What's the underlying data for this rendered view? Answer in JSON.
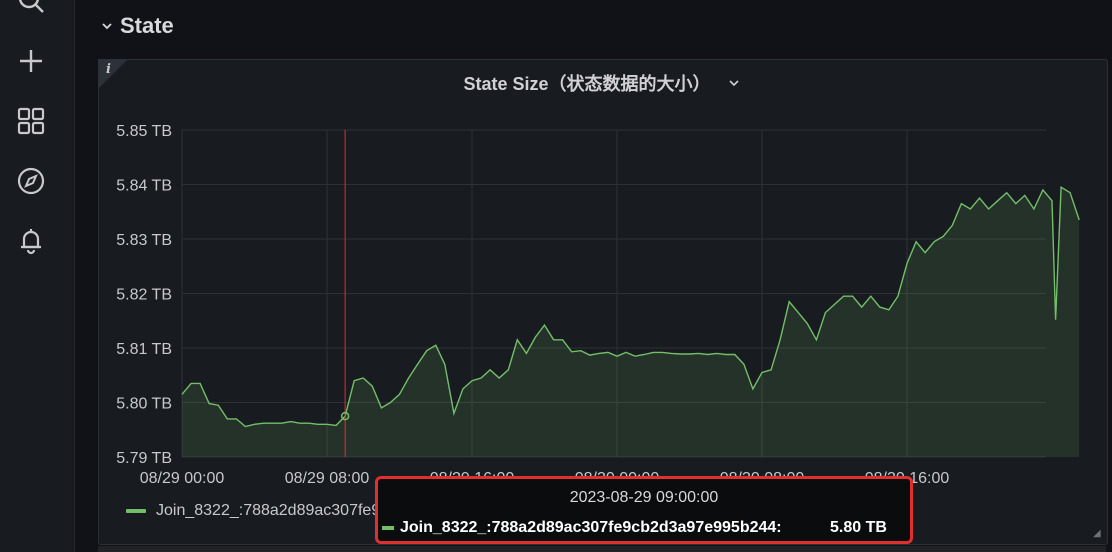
{
  "sidebar": {
    "items": [
      {
        "icon": "search-icon"
      },
      {
        "icon": "plus-icon"
      },
      {
        "icon": "dashboards-icon"
      },
      {
        "icon": "explore-compass-icon"
      },
      {
        "icon": "alerting-bell-icon"
      }
    ]
  },
  "row": {
    "title": "State"
  },
  "panel": {
    "title": "State Size（状态数据的大小）",
    "info": "i"
  },
  "colors": {
    "series": "#73bf69",
    "cursor": "#e02f2f",
    "grid": "#2e3136",
    "background": "#181b1f"
  },
  "chart_data": {
    "type": "area",
    "title": "State Size（状态数据的大小）",
    "y_unit": "TB",
    "ylim": [
      5.79,
      5.85
    ],
    "yticks": [
      "5.79 TB",
      "5.80 TB",
      "5.81 TB",
      "5.82 TB",
      "5.83 TB",
      "5.84 TB",
      "5.85 TB"
    ],
    "xticks": [
      "08/29 00:00",
      "08/29 08:00",
      "08/29 16:00",
      "08/30 00:00",
      "08/30 08:00",
      "08/30 16:00"
    ],
    "grid": true,
    "legend_placement": "bottom-left",
    "cursor_time": "2023-08-29 09:00:00",
    "series": [
      {
        "name": "Join_8322_:788a2d89ac307fe9cb2d3a97e995b244",
        "x": [
          0,
          0.5,
          1,
          1.5,
          2,
          2.5,
          3,
          3.5,
          4,
          4.5,
          5,
          5.5,
          6,
          6.5,
          7,
          7.5,
          8,
          8.5,
          9,
          9.5,
          10,
          10.5,
          11,
          11.5,
          12,
          12.5,
          13,
          13.5,
          14,
          14.5,
          15,
          15.5,
          16,
          16.5,
          17,
          17.5,
          18,
          18.5,
          19,
          19.5,
          20,
          20.5,
          21,
          21.5,
          22,
          22.5,
          23,
          23.5,
          24,
          24.5,
          25,
          25.5,
          26,
          26.5,
          27,
          27.5,
          28,
          28.5,
          29,
          29.5,
          30,
          30.5,
          31,
          31.5,
          32,
          32.5,
          33,
          33.5,
          34,
          34.5,
          35,
          35.5,
          36,
          36.5,
          37,
          37.5,
          38,
          38.5,
          39,
          39.5,
          40,
          40.5,
          41,
          41.5,
          42,
          42.5,
          43,
          43.5,
          44,
          44.5,
          45,
          45.5,
          46,
          46.5,
          47,
          47.5,
          48,
          48.2,
          48.5,
          49,
          49.5
        ],
        "values": [
          5.8015,
          5.8035,
          5.8035,
          5.7998,
          5.7995,
          5.797,
          5.797,
          5.7956,
          5.796,
          5.7962,
          5.7962,
          5.7962,
          5.7965,
          5.7962,
          5.7962,
          5.796,
          5.796,
          5.7958,
          5.7975,
          5.804,
          5.8045,
          5.803,
          5.799,
          5.8,
          5.8015,
          5.8045,
          5.807,
          5.8095,
          5.8105,
          5.807,
          5.798,
          5.8025,
          5.804,
          5.8045,
          5.806,
          5.8045,
          5.806,
          5.8115,
          5.809,
          5.812,
          5.8142,
          5.8115,
          5.8115,
          5.8093,
          5.8095,
          5.8087,
          5.809,
          5.8092,
          5.8085,
          5.8092,
          5.8085,
          5.8088,
          5.8092,
          5.8092,
          5.809,
          5.8089,
          5.8089,
          5.809,
          5.8088,
          5.809,
          5.8088,
          5.8088,
          5.807,
          5.8025,
          5.8055,
          5.806,
          5.8115,
          5.8185,
          5.8165,
          5.8145,
          5.8115,
          5.8165,
          5.818,
          5.8195,
          5.8195,
          5.8175,
          5.8195,
          5.8175,
          5.817,
          5.8195,
          5.8255,
          5.8295,
          5.8275,
          5.8295,
          5.8305,
          5.8325,
          5.8365,
          5.8355,
          5.8375,
          5.8355,
          5.837,
          5.8385,
          5.8365,
          5.838,
          5.8355,
          5.839,
          5.837,
          5.8152,
          5.8395,
          5.8385,
          5.8335
        ]
      }
    ],
    "tooltip_value": "5.80 TB"
  },
  "tooltip": {
    "time": "2023-08-29 09:00:00",
    "series_name": "Join_8322_:788a2d89ac307fe9cb2d3a97e995b244:",
    "value": "5.80 TB"
  }
}
